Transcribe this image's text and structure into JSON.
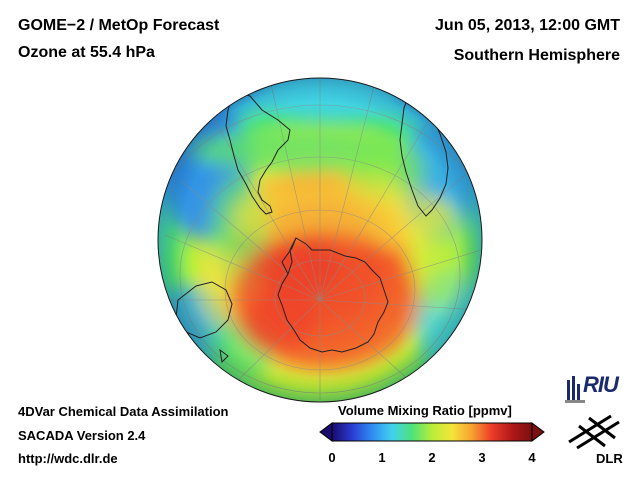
{
  "header": {
    "product": "GOME−2 / MetOp Forecast",
    "quantity": "Ozone at 55.4 hPa",
    "datetime": "Jun 05, 2013, 12:00 GMT",
    "region": "Southern Hemisphere"
  },
  "footer": {
    "method": "4DVar Chemical Data Assimilation",
    "version": "SACADA Version 2.4",
    "url": "http://wdc.dlr.de"
  },
  "colorbar": {
    "title": "Volume Mixing Ratio [ppmv]",
    "min": 0,
    "max": 4,
    "ticks": [
      "0",
      "1",
      "2",
      "3",
      "4"
    ],
    "colors": [
      "#1a0b6e",
      "#2a3bd0",
      "#2f8cf2",
      "#3fd2ee",
      "#4fe27a",
      "#b8ee3a",
      "#f6e43a",
      "#f8a030",
      "#ee3a2a",
      "#b01818",
      "#7a1010"
    ]
  },
  "logos": {
    "riu": "RIU",
    "dlr": "DLR"
  },
  "map": {
    "projection": "orthographic, south polar view",
    "field": "ozone volume mixing ratio",
    "continents": [
      "Antarctica",
      "South America",
      "Africa",
      "Australia"
    ]
  }
}
